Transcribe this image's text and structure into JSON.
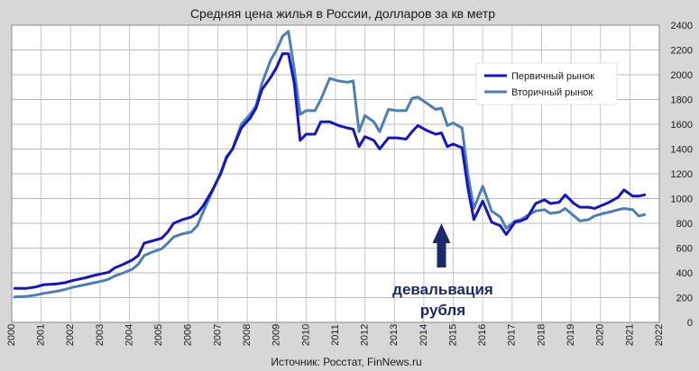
{
  "chart_data": {
    "type": "line",
    "title": "Средняя цена жилья в России, долларов за кв метр",
    "source": "Источник: Росстат, FinNews.ru",
    "xlabel": "",
    "ylabel": "",
    "xlim": [
      2000,
      2022
    ],
    "ylim": [
      0,
      2400
    ],
    "xticks": [
      2000,
      2001,
      2002,
      2003,
      2004,
      2005,
      2006,
      2007,
      2008,
      2009,
      2010,
      2011,
      2012,
      2013,
      2014,
      2015,
      2016,
      2017,
      2018,
      2019,
      2020,
      2021,
      2022
    ],
    "yticks": [
      0,
      200,
      400,
      600,
      800,
      1000,
      1200,
      1400,
      1600,
      1800,
      2000,
      2200,
      2400
    ],
    "grid": true,
    "legend_position": "top-right",
    "annotation": {
      "lines": [
        "девальвация",
        "рубля"
      ],
      "arrow_x": 2014.6,
      "arrow_tip_y": 800
    },
    "series": [
      {
        "name": "Первичный рынок",
        "color": "#1414c8",
        "points": [
          [
            2000.1,
            275
          ],
          [
            2000.5,
            275
          ],
          [
            2000.8,
            285
          ],
          [
            2001.1,
            305
          ],
          [
            2001.5,
            310
          ],
          [
            2001.8,
            320
          ],
          [
            2002.1,
            340
          ],
          [
            2002.5,
            360
          ],
          [
            2002.8,
            380
          ],
          [
            2003.1,
            395
          ],
          [
            2003.3,
            405
          ],
          [
            2003.5,
            440
          ],
          [
            2003.8,
            470
          ],
          [
            2004.1,
            505
          ],
          [
            2004.3,
            540
          ],
          [
            2004.5,
            640
          ],
          [
            2004.8,
            660
          ],
          [
            2005.1,
            680
          ],
          [
            2005.3,
            730
          ],
          [
            2005.5,
            800
          ],
          [
            2005.8,
            830
          ],
          [
            2006.1,
            850
          ],
          [
            2006.3,
            880
          ],
          [
            2006.5,
            940
          ],
          [
            2006.8,
            1060
          ],
          [
            2007.1,
            1200
          ],
          [
            2007.3,
            1330
          ],
          [
            2007.5,
            1400
          ],
          [
            2007.8,
            1570
          ],
          [
            2008.1,
            1650
          ],
          [
            2008.3,
            1730
          ],
          [
            2008.5,
            1880
          ],
          [
            2008.8,
            1980
          ],
          [
            2009.0,
            2060
          ],
          [
            2009.2,
            2170
          ],
          [
            2009.4,
            2170
          ],
          [
            2009.6,
            1930
          ],
          [
            2009.8,
            1470
          ],
          [
            2010.0,
            1520
          ],
          [
            2010.3,
            1520
          ],
          [
            2010.5,
            1620
          ],
          [
            2010.8,
            1620
          ],
          [
            2011.1,
            1590
          ],
          [
            2011.4,
            1570
          ],
          [
            2011.6,
            1560
          ],
          [
            2011.8,
            1420
          ],
          [
            2012.0,
            1500
          ],
          [
            2012.3,
            1470
          ],
          [
            2012.5,
            1400
          ],
          [
            2012.8,
            1490
          ],
          [
            2013.1,
            1490
          ],
          [
            2013.4,
            1480
          ],
          [
            2013.6,
            1540
          ],
          [
            2013.8,
            1590
          ],
          [
            2014.1,
            1550
          ],
          [
            2014.4,
            1520
          ],
          [
            2014.6,
            1530
          ],
          [
            2014.8,
            1420
          ],
          [
            2015.0,
            1440
          ],
          [
            2015.3,
            1410
          ],
          [
            2015.5,
            1080
          ],
          [
            2015.7,
            830
          ],
          [
            2016.0,
            980
          ],
          [
            2016.3,
            810
          ],
          [
            2016.6,
            780
          ],
          [
            2016.8,
            710
          ],
          [
            2017.1,
            810
          ],
          [
            2017.3,
            820
          ],
          [
            2017.5,
            840
          ],
          [
            2017.8,
            960
          ],
          [
            2018.1,
            990
          ],
          [
            2018.3,
            960
          ],
          [
            2018.6,
            970
          ],
          [
            2018.8,
            1030
          ],
          [
            2019.1,
            960
          ],
          [
            2019.3,
            930
          ],
          [
            2019.6,
            930
          ],
          [
            2019.8,
            920
          ],
          [
            2020.1,
            950
          ],
          [
            2020.3,
            970
          ],
          [
            2020.6,
            1010
          ],
          [
            2020.8,
            1070
          ],
          [
            2021.1,
            1020
          ],
          [
            2021.3,
            1020
          ],
          [
            2021.5,
            1030
          ]
        ]
      },
      {
        "name": "Вторичный рынок",
        "color": "#4a7fb8",
        "points": [
          [
            2000.1,
            205
          ],
          [
            2000.5,
            210
          ],
          [
            2000.8,
            220
          ],
          [
            2001.1,
            235
          ],
          [
            2001.5,
            250
          ],
          [
            2001.8,
            265
          ],
          [
            2002.1,
            285
          ],
          [
            2002.5,
            305
          ],
          [
            2002.8,
            320
          ],
          [
            2003.1,
            335
          ],
          [
            2003.3,
            350
          ],
          [
            2003.5,
            375
          ],
          [
            2003.8,
            400
          ],
          [
            2004.1,
            430
          ],
          [
            2004.3,
            470
          ],
          [
            2004.5,
            540
          ],
          [
            2004.8,
            570
          ],
          [
            2005.1,
            595
          ],
          [
            2005.3,
            640
          ],
          [
            2005.5,
            690
          ],
          [
            2005.8,
            715
          ],
          [
            2006.1,
            730
          ],
          [
            2006.3,
            780
          ],
          [
            2006.5,
            890
          ],
          [
            2006.8,
            1050
          ],
          [
            2007.1,
            1210
          ],
          [
            2007.3,
            1340
          ],
          [
            2007.5,
            1400
          ],
          [
            2007.8,
            1600
          ],
          [
            2008.1,
            1680
          ],
          [
            2008.3,
            1750
          ],
          [
            2008.5,
            1930
          ],
          [
            2008.8,
            2120
          ],
          [
            2009.0,
            2200
          ],
          [
            2009.2,
            2310
          ],
          [
            2009.4,
            2350
          ],
          [
            2009.6,
            2040
          ],
          [
            2009.8,
            1680
          ],
          [
            2010.0,
            1710
          ],
          [
            2010.3,
            1710
          ],
          [
            2010.5,
            1800
          ],
          [
            2010.8,
            1970
          ],
          [
            2011.1,
            1950
          ],
          [
            2011.4,
            1940
          ],
          [
            2011.6,
            1950
          ],
          [
            2011.8,
            1540
          ],
          [
            2012.0,
            1670
          ],
          [
            2012.3,
            1620
          ],
          [
            2012.5,
            1540
          ],
          [
            2012.8,
            1720
          ],
          [
            2013.1,
            1710
          ],
          [
            2013.4,
            1710
          ],
          [
            2013.6,
            1810
          ],
          [
            2013.8,
            1820
          ],
          [
            2014.1,
            1770
          ],
          [
            2014.4,
            1720
          ],
          [
            2014.6,
            1730
          ],
          [
            2014.8,
            1590
          ],
          [
            2015.0,
            1610
          ],
          [
            2015.3,
            1570
          ],
          [
            2015.5,
            1190
          ],
          [
            2015.7,
            920
          ],
          [
            2016.0,
            1100
          ],
          [
            2016.3,
            900
          ],
          [
            2016.6,
            850
          ],
          [
            2016.8,
            760
          ],
          [
            2017.1,
            820
          ],
          [
            2017.3,
            830
          ],
          [
            2017.5,
            860
          ],
          [
            2017.8,
            900
          ],
          [
            2018.1,
            910
          ],
          [
            2018.3,
            880
          ],
          [
            2018.6,
            890
          ],
          [
            2018.8,
            920
          ],
          [
            2019.1,
            860
          ],
          [
            2019.3,
            820
          ],
          [
            2019.6,
            830
          ],
          [
            2019.8,
            860
          ],
          [
            2020.1,
            880
          ],
          [
            2020.3,
            890
          ],
          [
            2020.6,
            910
          ],
          [
            2020.8,
            920
          ],
          [
            2021.1,
            910
          ],
          [
            2021.3,
            860
          ],
          [
            2021.5,
            870
          ]
        ]
      }
    ]
  }
}
